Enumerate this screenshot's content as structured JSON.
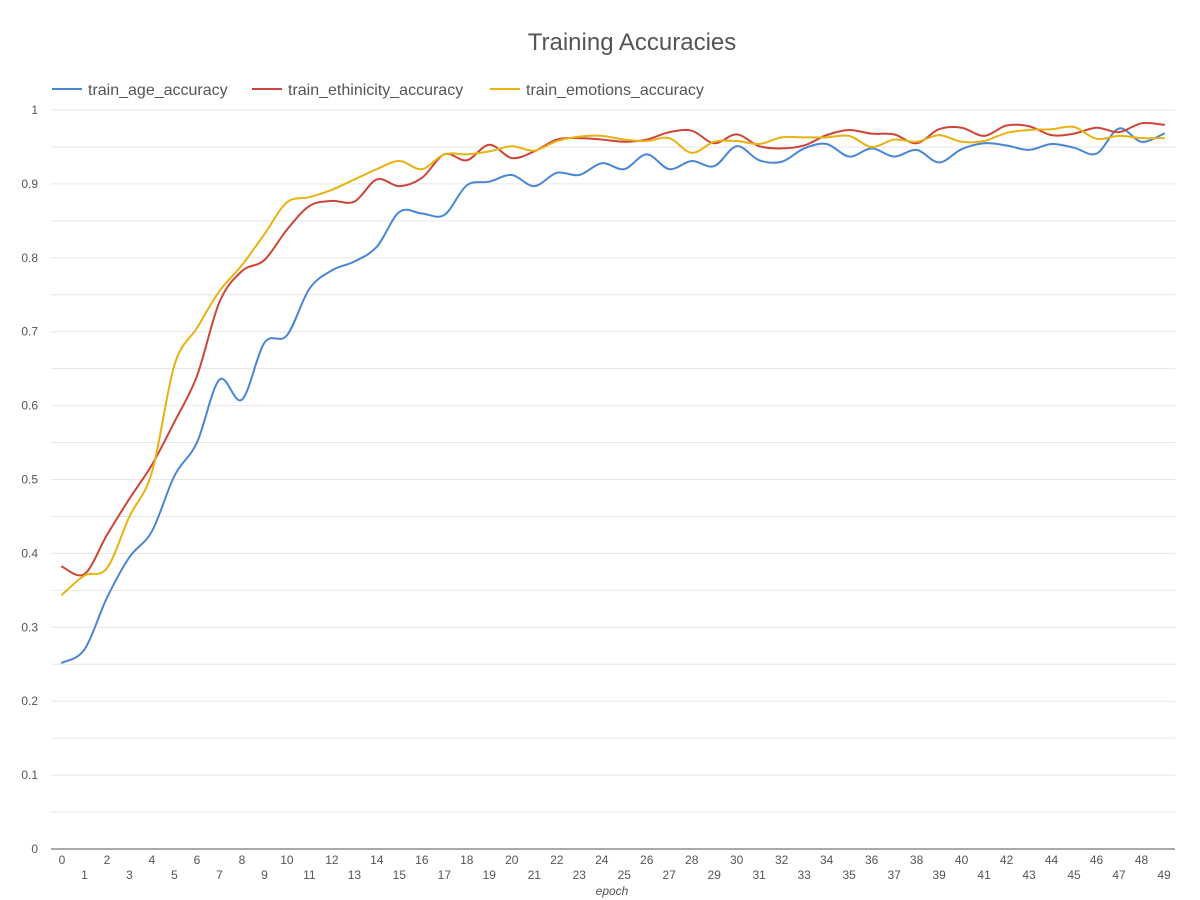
{
  "chart_data": {
    "type": "line",
    "title": "Training Accuracies",
    "xlabel": "epoch",
    "ylabel": "",
    "ylim": [
      0,
      1
    ],
    "y_ticks": [
      "0",
      "0.1",
      "0.2",
      "0.3",
      "0.4",
      "0.5",
      "0.6",
      "0.7",
      "0.8",
      "0.9",
      "1"
    ],
    "grid": true,
    "legend_position": "top-left",
    "x": [
      0,
      1,
      2,
      3,
      4,
      5,
      6,
      7,
      8,
      9,
      10,
      11,
      12,
      13,
      14,
      15,
      16,
      17,
      18,
      19,
      20,
      21,
      22,
      23,
      24,
      25,
      26,
      27,
      28,
      29,
      30,
      31,
      32,
      33,
      34,
      35,
      36,
      37,
      38,
      39,
      40,
      41,
      42,
      43,
      44,
      45,
      46,
      47,
      48,
      49
    ],
    "series": [
      {
        "name": "train_age_accuracy",
        "color": "#4a86d6",
        "values": [
          0.252,
          0.27,
          0.34,
          0.395,
          0.43,
          0.505,
          0.55,
          0.635,
          0.608,
          0.685,
          0.695,
          0.758,
          0.783,
          0.795,
          0.815,
          0.862,
          0.86,
          0.858,
          0.898,
          0.903,
          0.912,
          0.897,
          0.915,
          0.912,
          0.928,
          0.92,
          0.94,
          0.92,
          0.931,
          0.924,
          0.951,
          0.932,
          0.93,
          0.948,
          0.954,
          0.937,
          0.948,
          0.937,
          0.946,
          0.929,
          0.947,
          0.955,
          0.952,
          0.946,
          0.954,
          0.949,
          0.941,
          0.975,
          0.957,
          0.968
        ]
      },
      {
        "name": "train_ethinicity_accuracy",
        "color": "#cc4538",
        "values": [
          0.382,
          0.372,
          0.425,
          0.474,
          0.52,
          0.578,
          0.64,
          0.74,
          0.782,
          0.797,
          0.838,
          0.87,
          0.877,
          0.876,
          0.906,
          0.897,
          0.908,
          0.94,
          0.932,
          0.953,
          0.935,
          0.944,
          0.96,
          0.962,
          0.96,
          0.957,
          0.96,
          0.97,
          0.972,
          0.955,
          0.967,
          0.951,
          0.948,
          0.952,
          0.966,
          0.973,
          0.968,
          0.967,
          0.955,
          0.974,
          0.976,
          0.965,
          0.979,
          0.978,
          0.966,
          0.968,
          0.976,
          0.97,
          0.982,
          0.98
        ]
      },
      {
        "name": "train_emotions_accuracy",
        "color": "#e8b210",
        "values": [
          0.344,
          0.37,
          0.38,
          0.45,
          0.51,
          0.655,
          0.705,
          0.755,
          0.79,
          0.832,
          0.875,
          0.882,
          0.892,
          0.906,
          0.92,
          0.931,
          0.92,
          0.94,
          0.94,
          0.944,
          0.951,
          0.945,
          0.958,
          0.964,
          0.965,
          0.96,
          0.958,
          0.962,
          0.942,
          0.957,
          0.958,
          0.954,
          0.963,
          0.963,
          0.963,
          0.965,
          0.95,
          0.96,
          0.957,
          0.966,
          0.957,
          0.958,
          0.969,
          0.973,
          0.974,
          0.977,
          0.961,
          0.965,
          0.962,
          0.962
        ]
      }
    ]
  }
}
